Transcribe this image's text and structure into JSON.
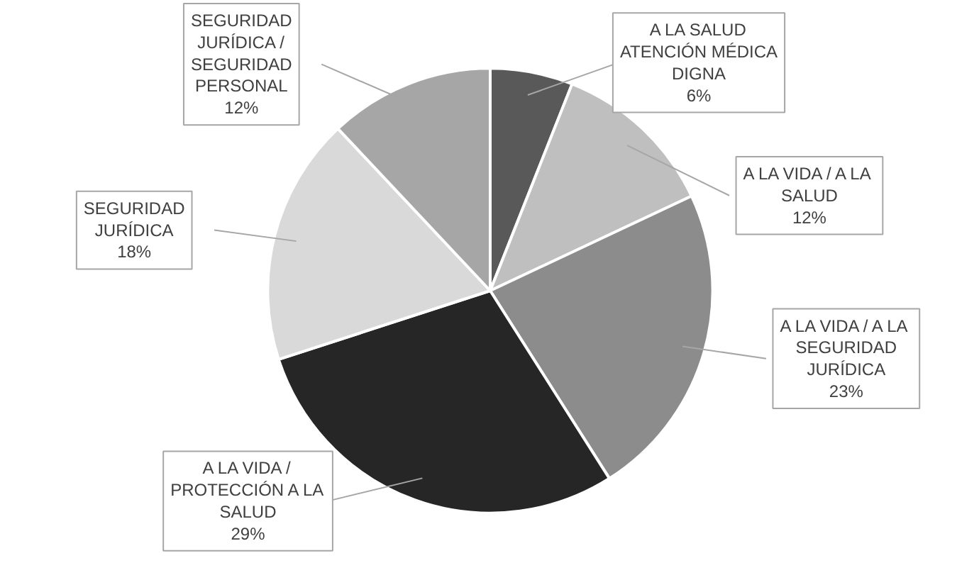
{
  "chart_data": {
    "type": "pie",
    "categories": [
      "A LA SALUD ATENCIÓN MÉDICA DIGNA",
      "A LA VIDA / A LA SALUD",
      "A LA VIDA / A LA SEGURIDAD JURÍDICA",
      "A LA VIDA / PROTECCIÓN A LA SALUD",
      "SEGURIDAD JURÍDICA",
      "SEGURIDAD JURÍDICA / SEGURIDAD PERSONAL"
    ],
    "values": [
      6,
      12,
      23,
      29,
      18,
      12
    ],
    "colors": [
      "#595959",
      "#bfbfbf",
      "#8c8c8c",
      "#262626",
      "#d9d9d9",
      "#a6a6a6"
    ],
    "value_labels": [
      "6%",
      "12%",
      "23%",
      "29%",
      "18%",
      "12%"
    ]
  }
}
